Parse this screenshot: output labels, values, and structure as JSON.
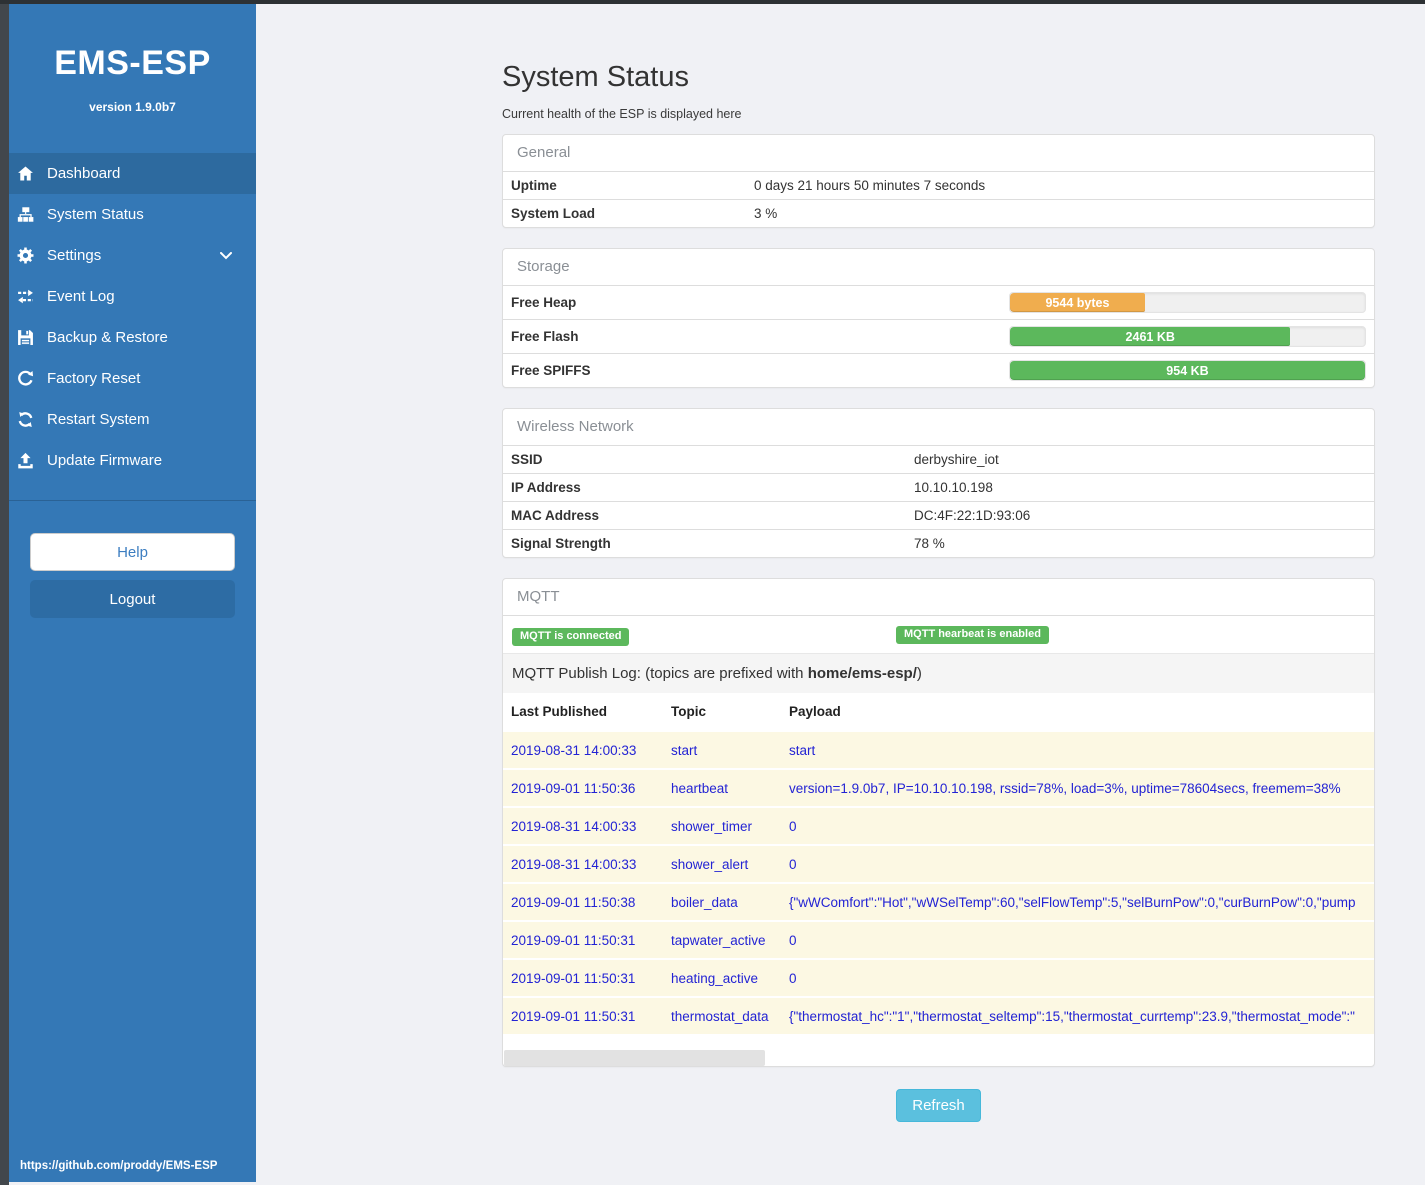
{
  "app": {
    "title": "EMS-ESP",
    "version": "version 1.9.0b7",
    "github_link": "https://github.com/proddy/EMS-ESP"
  },
  "sidebar": {
    "items": [
      {
        "label": "Dashboard",
        "icon": "home-icon",
        "active": true
      },
      {
        "label": "System Status",
        "icon": "sitemap-icon",
        "active": false
      },
      {
        "label": "Settings",
        "icon": "gear-icon",
        "active": false,
        "chevron": true
      },
      {
        "label": "Event Log",
        "icon": "exchange-icon",
        "active": false
      },
      {
        "label": "Backup & Restore",
        "icon": "save-icon",
        "active": false
      },
      {
        "label": "Factory Reset",
        "icon": "redo-icon",
        "active": false
      },
      {
        "label": "Restart System",
        "icon": "sync-icon",
        "active": false
      },
      {
        "label": "Update Firmware",
        "icon": "upload-icon",
        "active": false
      }
    ],
    "help_label": "Help",
    "logout_label": "Logout"
  },
  "page": {
    "title": "System Status",
    "subtitle": "Current health of the ESP is displayed here",
    "refresh_label": "Refresh"
  },
  "general": {
    "heading": "General",
    "rows": [
      [
        "Uptime",
        "0 days 21 hours 50 minutes 7 seconds"
      ],
      [
        "System Load",
        "3 %"
      ]
    ]
  },
  "storage": {
    "heading": "Storage",
    "bars": [
      {
        "label": "Free Heap",
        "value": "9544 bytes",
        "percent": 38,
        "color": "#f0ad4e"
      },
      {
        "label": "Free Flash",
        "value": "2461 KB",
        "percent": 79,
        "color": "#5cb85c"
      },
      {
        "label": "Free SPIFFS",
        "value": "954 KB",
        "percent": 100,
        "color": "#5cb85c"
      }
    ]
  },
  "wireless": {
    "heading": "Wireless Network",
    "rows": [
      [
        "SSID",
        "derbyshire_iot"
      ],
      [
        "IP Address",
        "10.10.10.198"
      ],
      [
        "MAC Address",
        "DC:4F:22:1D:93:06"
      ],
      [
        "Signal Strength",
        "78 %"
      ]
    ]
  },
  "mqtt": {
    "heading": "MQTT",
    "badges": [
      "MQTT is connected",
      "MQTT hearbeat is enabled"
    ],
    "log_prefix": "MQTT Publish Log: (topics are prefixed with ",
    "log_bold": "home/ems-esp/",
    "log_suffix": ")",
    "table": {
      "headers": [
        "Last Published",
        "Topic",
        "Payload"
      ],
      "rows": [
        {
          "time": "2019-08-31 14:00:33",
          "topic": "start",
          "payload": "start"
        },
        {
          "time": "2019-09-01 11:50:36",
          "topic": "heartbeat",
          "payload": "version=1.9.0b7, IP=10.10.10.198, rssid=78%, load=3%, uptime=78604secs, freemem=38%"
        },
        {
          "time": "2019-08-31 14:00:33",
          "topic": "shower_timer",
          "payload": "0"
        },
        {
          "time": "2019-08-31 14:00:33",
          "topic": "shower_alert",
          "payload": "0"
        },
        {
          "time": "2019-09-01 11:50:38",
          "topic": "boiler_data",
          "payload": "{\"wWComfort\":\"Hot\",\"wWSelTemp\":60,\"selFlowTemp\":5,\"selBurnPow\":0,\"curBurnPow\":0,\"pump"
        },
        {
          "time": "2019-09-01 11:50:31",
          "topic": "tapwater_active",
          "payload": "0"
        },
        {
          "time": "2019-09-01 11:50:31",
          "topic": "heating_active",
          "payload": "0"
        },
        {
          "time": "2019-09-01 11:50:31",
          "topic": "thermostat_data",
          "payload": "{\"thermostat_hc\":\"1\",\"thermostat_seltemp\":15,\"thermostat_currtemp\":23.9,\"thermostat_mode\":\""
        }
      ]
    }
  },
  "colors": {
    "sidebar_blue": "#3478b6",
    "sidebar_active": "#2d6a9f",
    "badge_green": "#5cb85c",
    "bar_orange": "#f0ad4e",
    "bar_green": "#5cb85c",
    "refresh_blue": "#5bc0de",
    "log_text_blue": "#2323d4",
    "log_row_bg": "#fcf8e3"
  }
}
